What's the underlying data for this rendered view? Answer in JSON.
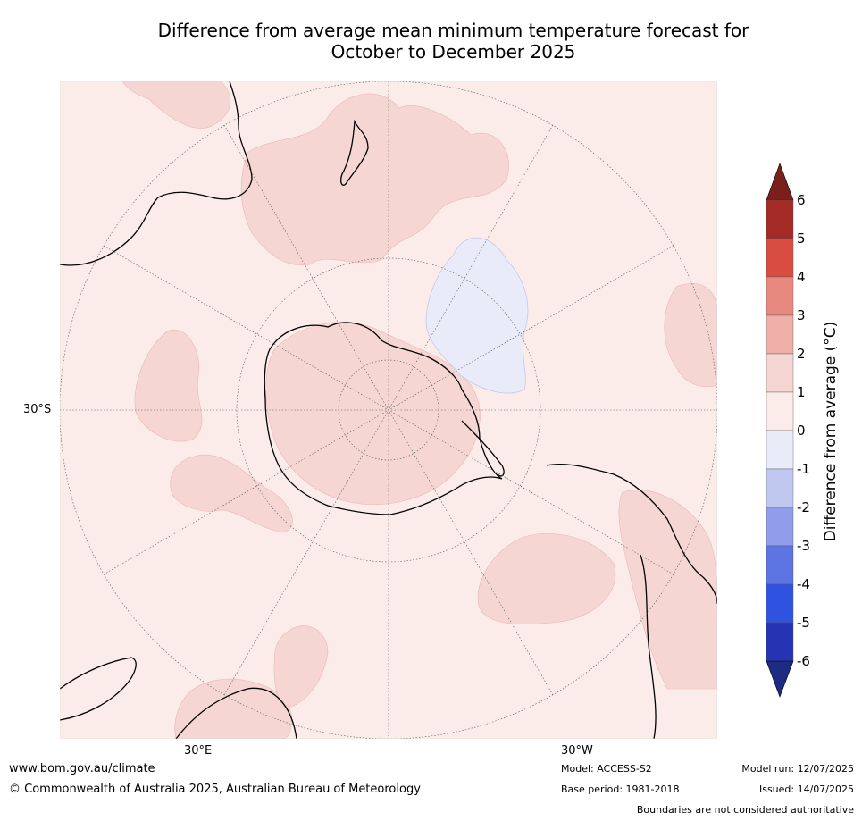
{
  "title_line1": "Difference from average mean minimum temperature forecast for",
  "title_line2": "October to December 2025",
  "lat_label": "30°S",
  "lon_labels": {
    "left": "30°E",
    "right": "30°W"
  },
  "colorbar": {
    "label": "Difference from average (°C)",
    "ticks": [
      "6",
      "5",
      "4",
      "3",
      "2",
      "1",
      "0",
      "-1",
      "-2",
      "-3",
      "-4",
      "-5",
      "-6"
    ],
    "colors_top_to_bottom": [
      "#a42a25",
      "#d94c42",
      "#e8897f",
      "#eeb0a8",
      "#f5d6d3",
      "#fbecea",
      "#e9ecf8",
      "#c1c8ef",
      "#8f9deb",
      "#5d75e3",
      "#2f52e0",
      "#2434b4"
    ],
    "over_color": "#7a1f1b",
    "under_color": "#1e2b82"
  },
  "map_colors": {
    "ocean_base": "#fbecea",
    "warm_1_2": "#f5d6d3",
    "cool_0_m1": "#e9ecf8"
  },
  "footer": {
    "url": "www.bom.gov.au/climate",
    "copyright": "© Commonwealth of Australia 2025, Australian Bureau of Meteorology",
    "model": "Model: ACCESS-S2",
    "base_period": "Base period: 1981-2018",
    "model_run": "Model run: 12/07/2025",
    "issued": "Issued: 14/07/2025",
    "disclaimer": "Boundaries are not considered authoritative"
  }
}
